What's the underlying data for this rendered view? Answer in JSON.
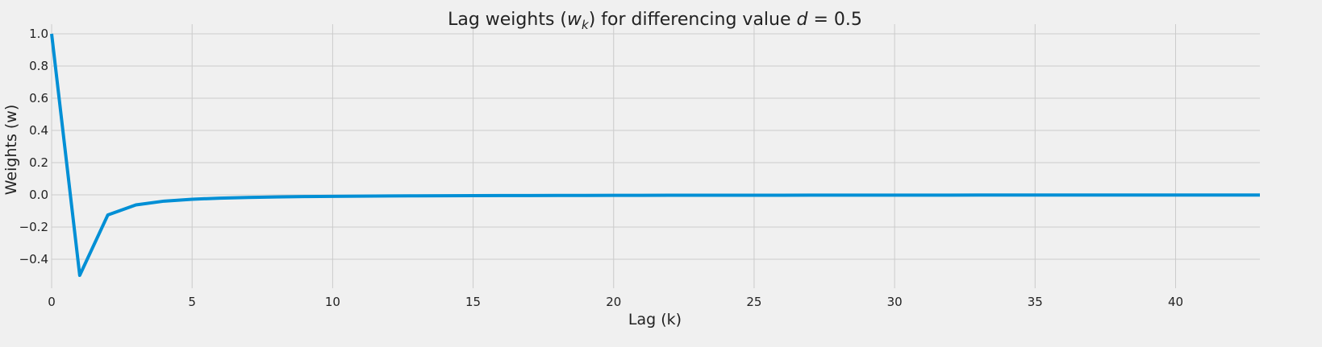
{
  "chart_data": {
    "type": "line",
    "title": "Lag weights (w_k) for differencing value d = 0.5",
    "title_parts": {
      "prefix": "Lag weights (",
      "w": "w",
      "k": "k",
      "middle": ") for differencing value ",
      "d": "d",
      "eq": " = 0.5"
    },
    "xlabel": "Lag (k)",
    "ylabel": "Weights (w)",
    "xlim": [
      0,
      43
    ],
    "ylim": [
      -0.58,
      1.06
    ],
    "xticks": [
      0,
      5,
      10,
      15,
      20,
      25,
      30,
      35,
      40
    ],
    "yticks": [
      -0.4,
      -0.2,
      0.0,
      0.2,
      0.4,
      0.6,
      0.8,
      1.0
    ],
    "ytick_labels": [
      "−0.4",
      "−0.2",
      "0.0",
      "0.2",
      "0.4",
      "0.6",
      "0.8",
      "1.0"
    ],
    "grid": true,
    "line_color": "#008fd5",
    "background_color": "#f0f0f0",
    "grid_color": "#cbcbcb",
    "series": [
      {
        "x": [
          0,
          1,
          2,
          3,
          4,
          5,
          6,
          7,
          8,
          9,
          10,
          11,
          12,
          13,
          14,
          15,
          16,
          17,
          18,
          19,
          20,
          21,
          22,
          23,
          24,
          25,
          26,
          27,
          28,
          29,
          30,
          31,
          32,
          33,
          34,
          35,
          36,
          37,
          38,
          39,
          40,
          41,
          42,
          43
        ],
        "values": [
          1.0,
          -0.5,
          -0.125,
          -0.0625,
          -0.0391,
          -0.0273,
          -0.0205,
          -0.0161,
          -0.0131,
          -0.0109,
          -0.0093,
          -0.008,
          -0.007,
          -0.0062,
          -0.0055,
          -0.005,
          -0.0045,
          -0.0041,
          -0.0038,
          -0.0035,
          -0.0032,
          -0.003,
          -0.0028,
          -0.0026,
          -0.0024,
          -0.0023,
          -0.0022,
          -0.002,
          -0.0019,
          -0.0018,
          -0.0017,
          -0.0017,
          -0.0016,
          -0.0015,
          -0.0014,
          -0.0014,
          -0.0013,
          -0.0013,
          -0.0012,
          -0.0012,
          -0.0011,
          -0.0011,
          -0.001,
          -0.001
        ]
      }
    ]
  }
}
